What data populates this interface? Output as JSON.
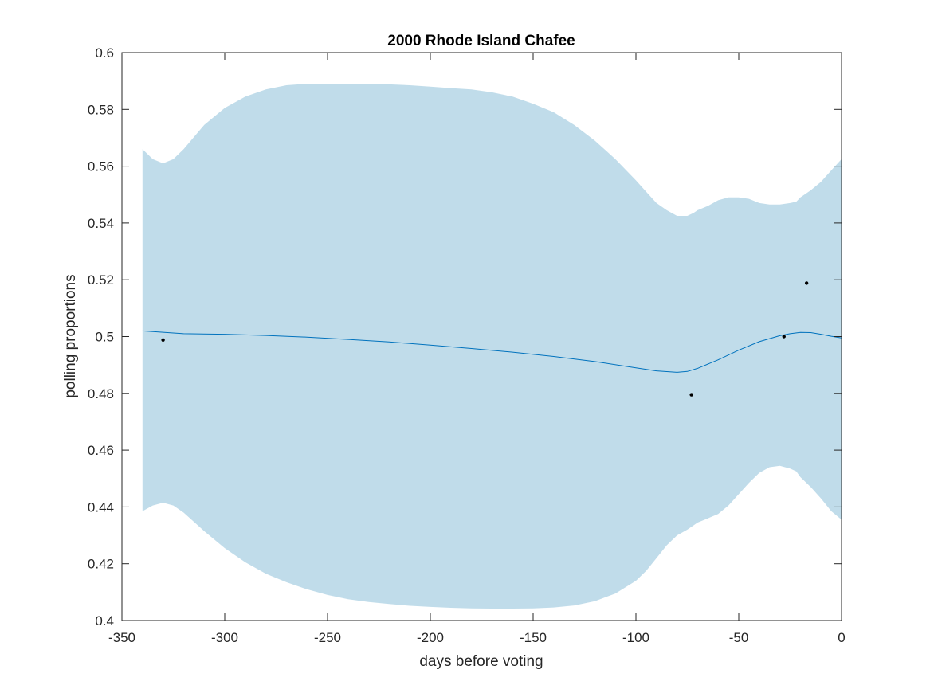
{
  "chart_data": {
    "type": "line",
    "title": "2000 Rhode Island Chafee",
    "xlabel": "days before voting",
    "ylabel": "polling proportions",
    "xlim": [
      -350,
      0
    ],
    "ylim": [
      0.4,
      0.6
    ],
    "x_ticks": [
      -350,
      -300,
      -250,
      -200,
      -150,
      -100,
      -50,
      0
    ],
    "y_ticks": [
      0.4,
      0.42,
      0.44,
      0.46,
      0.48,
      0.5,
      0.52,
      0.54,
      0.56,
      0.58,
      0.6
    ],
    "x_tick_labels": [
      "-350",
      "-300",
      "-250",
      "-200",
      "-150",
      "-100",
      "-50",
      "0"
    ],
    "y_tick_labels": [
      "0.4",
      "0.42",
      "0.44",
      "0.46",
      "0.48",
      "0.5",
      "0.52",
      "0.54",
      "0.56",
      "0.58",
      "0.6"
    ],
    "grid": false,
    "colors": {
      "band": "#c0dcea",
      "line": "#0072bd",
      "points": "#000000",
      "axes": "#262626"
    },
    "band": {
      "x": [
        -340,
        -335,
        -330,
        -325,
        -320,
        -310,
        -300,
        -290,
        -280,
        -270,
        -260,
        -250,
        -240,
        -230,
        -220,
        -210,
        -200,
        -190,
        -180,
        -170,
        -160,
        -150,
        -140,
        -130,
        -120,
        -110,
        -100,
        -95,
        -90,
        -85,
        -80,
        -75,
        -72,
        -70,
        -65,
        -60,
        -55,
        -50,
        -45,
        -40,
        -35,
        -30,
        -25,
        -22,
        -20,
        -15,
        -10,
        -5,
        0
      ],
      "upper": [
        0.566,
        0.5625,
        0.561,
        0.5625,
        0.566,
        0.5745,
        0.5805,
        0.5845,
        0.587,
        0.5885,
        0.589,
        0.589,
        0.589,
        0.589,
        0.5888,
        0.5885,
        0.588,
        0.5875,
        0.587,
        0.586,
        0.5845,
        0.582,
        0.579,
        0.5745,
        0.569,
        0.5625,
        0.555,
        0.551,
        0.547,
        0.5445,
        0.5425,
        0.5425,
        0.5435,
        0.5445,
        0.546,
        0.548,
        0.549,
        0.549,
        0.5485,
        0.547,
        0.5465,
        0.5465,
        0.547,
        0.5475,
        0.549,
        0.5515,
        0.5545,
        0.5585,
        0.5625
      ],
      "lower": [
        0.4385,
        0.4405,
        0.4415,
        0.4405,
        0.438,
        0.4315,
        0.4255,
        0.4205,
        0.4165,
        0.4135,
        0.411,
        0.409,
        0.4075,
        0.4065,
        0.4058,
        0.4052,
        0.4048,
        0.4045,
        0.4043,
        0.4042,
        0.4042,
        0.4043,
        0.4046,
        0.4053,
        0.4068,
        0.4095,
        0.414,
        0.4175,
        0.422,
        0.4265,
        0.43,
        0.432,
        0.4335,
        0.4345,
        0.436,
        0.4375,
        0.4405,
        0.4445,
        0.4485,
        0.452,
        0.454,
        0.4545,
        0.4535,
        0.4525,
        0.4505,
        0.447,
        0.443,
        0.4385,
        0.4355
      ]
    },
    "series": [
      {
        "x": [
          -340,
          -320,
          -300,
          -280,
          -260,
          -240,
          -220,
          -200,
          -180,
          -160,
          -140,
          -120,
          -100,
          -90,
          -80,
          -75,
          -70,
          -60,
          -50,
          -40,
          -30,
          -25,
          -20,
          -15,
          -10,
          -5,
          0
        ],
        "values": [
          0.502,
          0.501,
          0.5008,
          0.5004,
          0.4998,
          0.499,
          0.4981,
          0.497,
          0.4958,
          0.4945,
          0.493,
          0.4912,
          0.489,
          0.4879,
          0.4874,
          0.4877,
          0.4888,
          0.4918,
          0.4952,
          0.4982,
          0.5003,
          0.501,
          0.5015,
          0.5014,
          0.5008,
          0.5001,
          0.4995
        ]
      }
    ],
    "points": {
      "x": [
        -330,
        -73,
        -28,
        -17
      ],
      "y": [
        0.4988,
        0.4795,
        0.5,
        0.5188
      ]
    }
  }
}
